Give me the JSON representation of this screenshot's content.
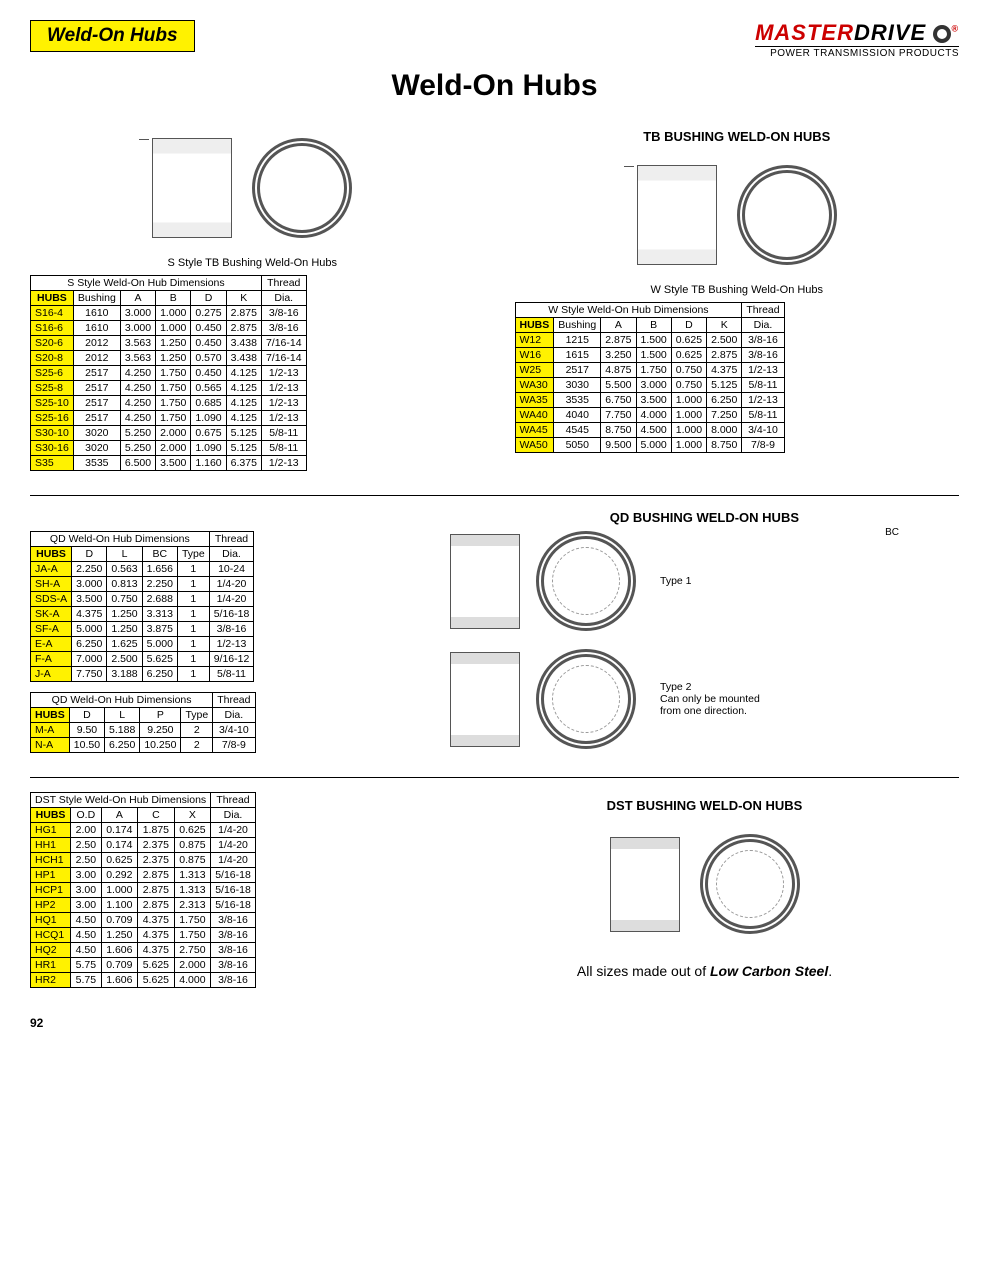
{
  "header": {
    "banner": "Weld-On Hubs",
    "brand_name_1": "MASTER",
    "brand_name_2": "DRIVE",
    "brand_sub": "POWER TRANSMISSION PRODUCTS"
  },
  "main_title": "Weld-On Hubs",
  "tb_section_title": "TB BUSHING WELD-ON HUBS",
  "s_caption": "S Style TB Bushing Weld-On Hubs",
  "w_caption": "W Style TB Bushing Weld-On Hubs",
  "s_table": {
    "title": "S Style Weld-On Hub Dimensions",
    "thread_head": "Thread",
    "cols": [
      "HUBS",
      "Bushing",
      "A",
      "B",
      "D",
      "K",
      "Dia."
    ],
    "rows": [
      [
        "S16-4",
        "1610",
        "3.000",
        "1.000",
        "0.275",
        "2.875",
        "3/8-16"
      ],
      [
        "S16-6",
        "1610",
        "3.000",
        "1.000",
        "0.450",
        "2.875",
        "3/8-16"
      ],
      [
        "S20-6",
        "2012",
        "3.563",
        "1.250",
        "0.450",
        "3.438",
        "7/16-14"
      ],
      [
        "S20-8",
        "2012",
        "3.563",
        "1.250",
        "0.570",
        "3.438",
        "7/16-14"
      ],
      [
        "S25-6",
        "2517",
        "4.250",
        "1.750",
        "0.450",
        "4.125",
        "1/2-13"
      ],
      [
        "S25-8",
        "2517",
        "4.250",
        "1.750",
        "0.565",
        "4.125",
        "1/2-13"
      ],
      [
        "S25-10",
        "2517",
        "4.250",
        "1.750",
        "0.685",
        "4.125",
        "1/2-13"
      ],
      [
        "S25-16",
        "2517",
        "4.250",
        "1.750",
        "1.090",
        "4.125",
        "1/2-13"
      ],
      [
        "S30-10",
        "3020",
        "5.250",
        "2.000",
        "0.675",
        "5.125",
        "5/8-11"
      ],
      [
        "S30-16",
        "3020",
        "5.250",
        "2.000",
        "1.090",
        "5.125",
        "5/8-11"
      ],
      [
        "S35",
        "3535",
        "6.500",
        "3.500",
        "1.160",
        "6.375",
        "1/2-13"
      ]
    ]
  },
  "w_table": {
    "title": "W Style Weld-On Hub Dimensions",
    "thread_head": "Thread",
    "cols": [
      "HUBS",
      "Bushing",
      "A",
      "B",
      "D",
      "K",
      "Dia."
    ],
    "rows": [
      [
        "W12",
        "1215",
        "2.875",
        "1.500",
        "0.625",
        "2.500",
        "3/8-16"
      ],
      [
        "W16",
        "1615",
        "3.250",
        "1.500",
        "0.625",
        "2.875",
        "3/8-16"
      ],
      [
        "W25",
        "2517",
        "4.875",
        "1.750",
        "0.750",
        "4.375",
        "1/2-13"
      ],
      [
        "WA30",
        "3030",
        "5.500",
        "3.000",
        "0.750",
        "5.125",
        "5/8-11"
      ],
      [
        "WA35",
        "3535",
        "6.750",
        "3.500",
        "1.000",
        "6.250",
        "1/2-13"
      ],
      [
        "WA40",
        "4040",
        "7.750",
        "4.000",
        "1.000",
        "7.250",
        "5/8-11"
      ],
      [
        "WA45",
        "4545",
        "8.750",
        "4.500",
        "1.000",
        "8.000",
        "3/4-10"
      ],
      [
        "WA50",
        "5050",
        "9.500",
        "5.000",
        "1.000",
        "8.750",
        "7/8-9"
      ]
    ]
  },
  "qd_section_title": "QD BUSHING WELD-ON HUBS",
  "qd_table1": {
    "title": "QD Weld-On Hub Dimensions",
    "thread_head": "Thread",
    "cols": [
      "HUBS",
      "D",
      "L",
      "BC",
      "Type",
      "Dia."
    ],
    "rows": [
      [
        "JA-A",
        "2.250",
        "0.563",
        "1.656",
        "1",
        "10-24"
      ],
      [
        "SH-A",
        "3.000",
        "0.813",
        "2.250",
        "1",
        "1/4-20"
      ],
      [
        "SDS-A",
        "3.500",
        "0.750",
        "2.688",
        "1",
        "1/4-20"
      ],
      [
        "SK-A",
        "4.375",
        "1.250",
        "3.313",
        "1",
        "5/16-18"
      ],
      [
        "SF-A",
        "5.000",
        "1.250",
        "3.875",
        "1",
        "3/8-16"
      ],
      [
        "E-A",
        "6.250",
        "1.625",
        "5.000",
        "1",
        "1/2-13"
      ],
      [
        "F-A",
        "7.000",
        "2.500",
        "5.625",
        "1",
        "9/16-12"
      ],
      [
        "J-A",
        "7.750",
        "3.188",
        "6.250",
        "1",
        "5/8-11"
      ]
    ]
  },
  "qd_table2": {
    "title": "QD Weld-On Hub Dimensions",
    "thread_head": "Thread",
    "cols": [
      "HUBS",
      "D",
      "L",
      "P",
      "Type",
      "Dia."
    ],
    "rows": [
      [
        "M-A",
        "9.50",
        "5.188",
        "9.250",
        "2",
        "3/4-10"
      ],
      [
        "N-A",
        "10.50",
        "6.250",
        "10.250",
        "2",
        "7/8-9"
      ]
    ]
  },
  "qd_type1_label": "Type 1",
  "qd_type2_label": "Type 2",
  "qd_type2_note": "Can only be mounted from one direction.",
  "qd_bc_label": "BC",
  "dst_section_title": "DST BUSHING WELD-ON HUBS",
  "dst_table": {
    "title": "DST Style Weld-On Hub Dimensions",
    "thread_head": "Thread",
    "cols": [
      "HUBS",
      "O.D",
      "A",
      "C",
      "X",
      "Dia."
    ],
    "rows": [
      [
        "HG1",
        "2.00",
        "0.174",
        "1.875",
        "0.625",
        "1/4-20"
      ],
      [
        "HH1",
        "2.50",
        "0.174",
        "2.375",
        "0.875",
        "1/4-20"
      ],
      [
        "HCH1",
        "2.50",
        "0.625",
        "2.375",
        "0.875",
        "1/4-20"
      ],
      [
        "HP1",
        "3.00",
        "0.292",
        "2.875",
        "1.313",
        "5/16-18"
      ],
      [
        "HCP1",
        "3.00",
        "1.000",
        "2.875",
        "1.313",
        "5/16-18"
      ],
      [
        "HP2",
        "3.00",
        "1.100",
        "2.875",
        "2.313",
        "5/16-18"
      ],
      [
        "HQ1",
        "4.50",
        "0.709",
        "4.375",
        "1.750",
        "3/8-16"
      ],
      [
        "HCQ1",
        "4.50",
        "1.250",
        "4.375",
        "1.750",
        "3/8-16"
      ],
      [
        "HQ2",
        "4.50",
        "1.606",
        "4.375",
        "2.750",
        "3/8-16"
      ],
      [
        "HR1",
        "5.75",
        "0.709",
        "5.625",
        "2.000",
        "3/8-16"
      ],
      [
        "HR2",
        "5.75",
        "1.606",
        "5.625",
        "4.000",
        "3/8-16"
      ]
    ]
  },
  "footer_note_1": "All sizes made out of ",
  "footer_note_em": "Low Carbon Steel",
  "footer_note_2": ".",
  "page_number": "92"
}
